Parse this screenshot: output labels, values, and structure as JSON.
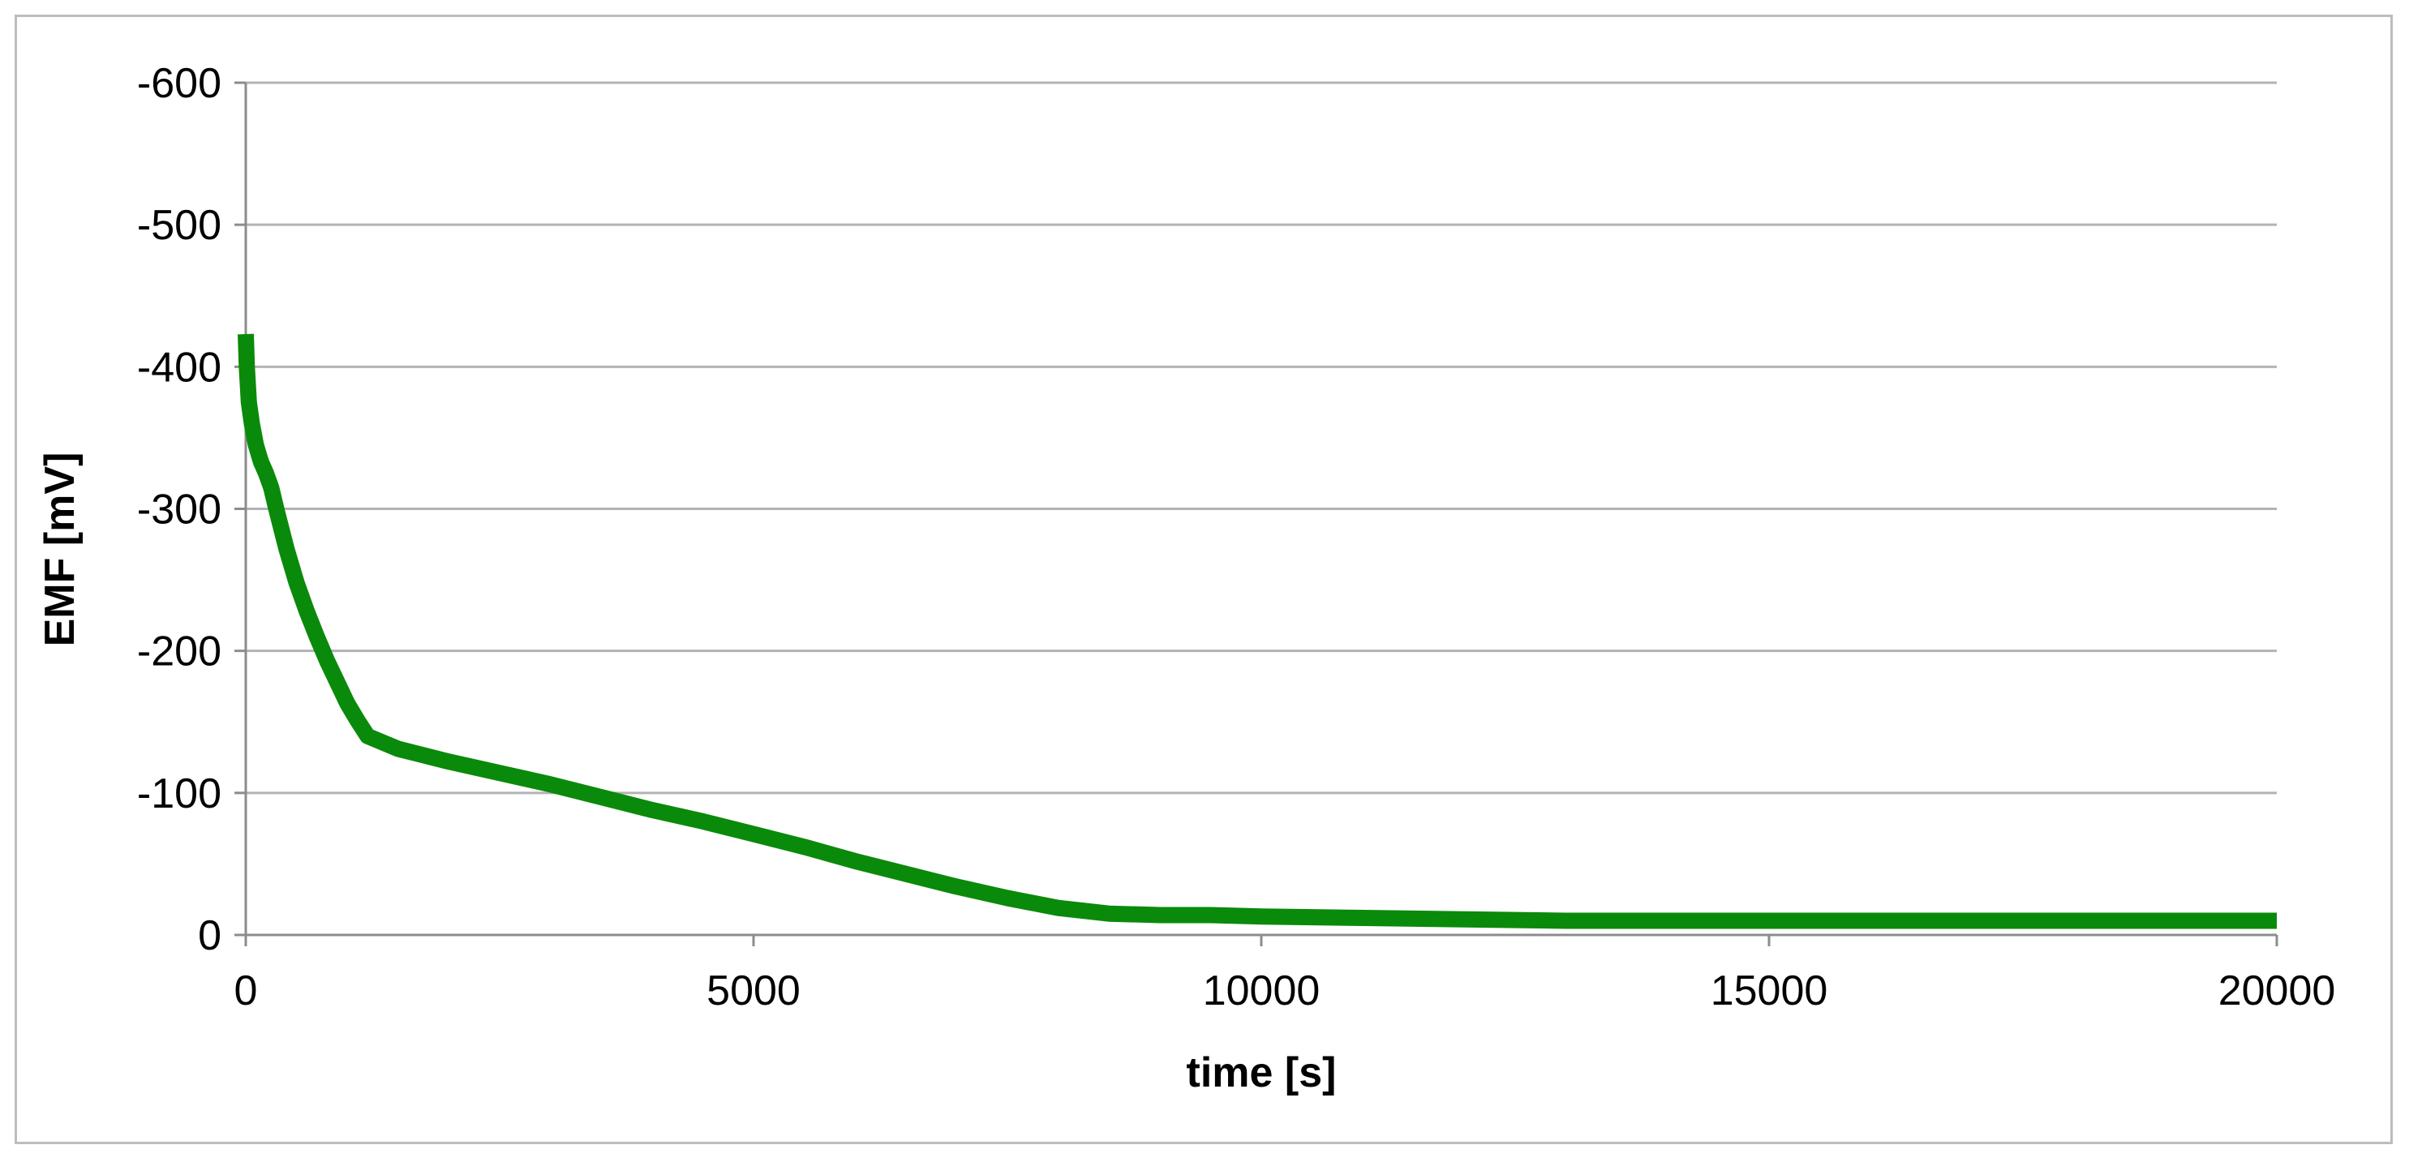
{
  "chart_data": {
    "type": "line",
    "title": "",
    "xlabel": "time [s]",
    "ylabel": "EMF [mV]",
    "xlim": [
      0,
      20000
    ],
    "ylim": [
      0,
      -600
    ],
    "y_axis_inverted": true,
    "grid": true,
    "legend": "none",
    "x_ticks": [
      {
        "value": 0,
        "label": "0"
      },
      {
        "value": 5000,
        "label": "5000"
      },
      {
        "value": 10000,
        "label": "10000"
      },
      {
        "value": 15000,
        "label": "15000"
      },
      {
        "value": 20000,
        "label": "20000"
      }
    ],
    "y_ticks": [
      {
        "value": 0,
        "label": "0"
      },
      {
        "value": -100,
        "label": "-100"
      },
      {
        "value": -200,
        "label": "-200"
      },
      {
        "value": -300,
        "label": "-300"
      },
      {
        "value": -400,
        "label": "-400"
      },
      {
        "value": -500,
        "label": "-500"
      },
      {
        "value": -600,
        "label": "-600"
      }
    ],
    "series": [
      {
        "color": "#0a8a0a",
        "x": [
          0,
          10,
          30,
          60,
          100,
          150,
          200,
          250,
          300,
          400,
          500,
          600,
          700,
          800,
          900,
          1000,
          1100,
          1200,
          1500,
          2000,
          2500,
          3000,
          3500,
          4000,
          4500,
          5000,
          5500,
          6000,
          6500,
          7000,
          7500,
          8000,
          8500,
          9000,
          9500,
          10000,
          11000,
          12000,
          13000,
          14000,
          15000,
          16000,
          17000,
          18000,
          19000,
          20000
        ],
        "y": [
          -423,
          -400,
          -375,
          -360,
          -345,
          -333,
          -325,
          -315,
          -300,
          -272,
          -248,
          -228,
          -210,
          -193,
          -178,
          -163,
          -151,
          -140,
          -131,
          -122,
          -114,
          -106,
          -97,
          -88,
          -80,
          -71,
          -62,
          -52,
          -43,
          -34,
          -26,
          -19,
          -15,
          -14,
          -14,
          -13,
          -12,
          -11,
          -10,
          -10,
          -10,
          -10,
          -10,
          -10,
          -10,
          -10
        ]
      }
    ]
  }
}
